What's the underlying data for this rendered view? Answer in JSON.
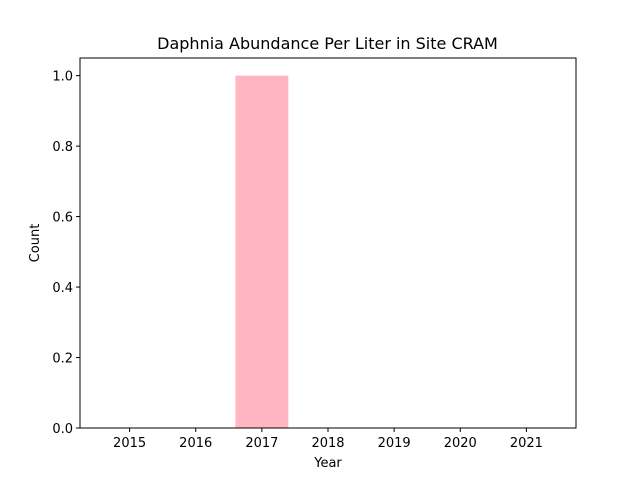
{
  "chart_data": {
    "type": "bar",
    "title": "Daphnia Abundance Per Liter in Site CRAM",
    "xlabel": "Year",
    "ylabel": "Count",
    "categories": [
      "2015",
      "2016",
      "2017",
      "2018",
      "2019",
      "2020",
      "2021"
    ],
    "values": [
      0,
      0,
      1,
      0,
      0,
      0,
      0
    ],
    "ylim": [
      0,
      1.05
    ],
    "yticks": [
      0.0,
      0.2,
      0.4,
      0.6,
      0.8,
      1.0
    ],
    "ytick_labels": [
      "0.0",
      "0.2",
      "0.4",
      "0.6",
      "0.8",
      "1.0"
    ],
    "bar_color": "#ffb6c1",
    "grid": false,
    "legend": "none"
  }
}
